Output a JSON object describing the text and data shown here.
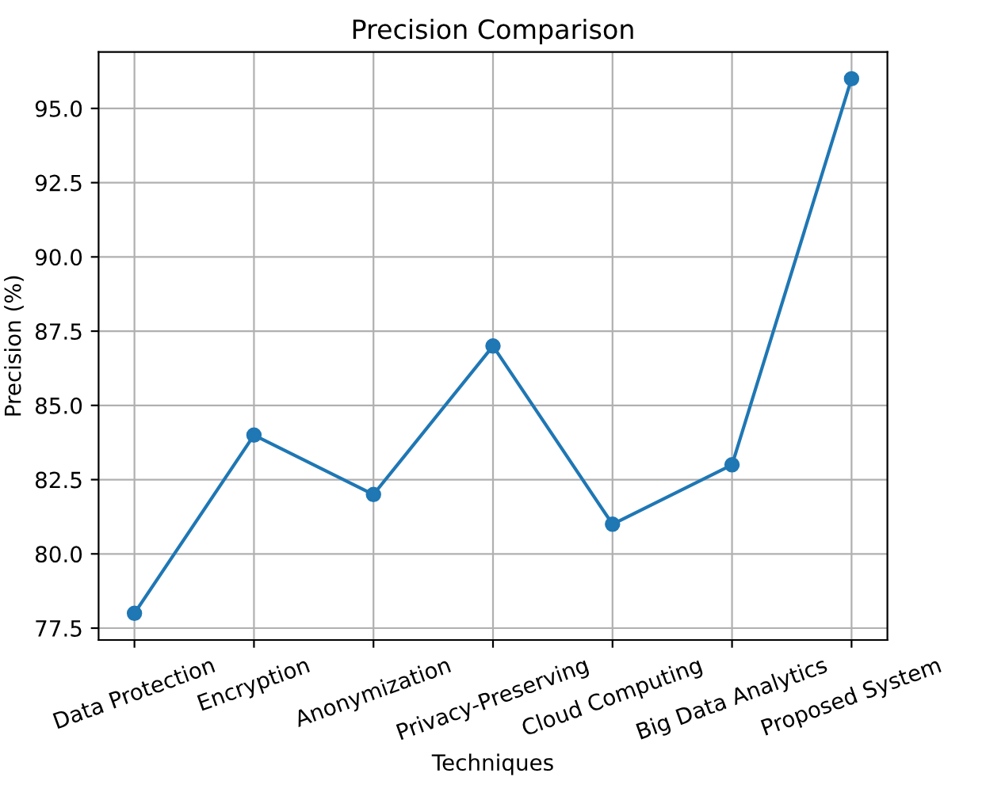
{
  "chart_data": {
    "type": "line",
    "title": "Precision Comparison",
    "xlabel": "Techniques",
    "ylabel": "Precision (%)",
    "categories": [
      "Data Protection",
      "Encryption",
      "Anonymization",
      "Privacy-Preserving",
      "Cloud Computing",
      "Big Data Analytics",
      "Proposed System"
    ],
    "series": [
      {
        "color": "#1f77b4",
        "values": [
          78,
          84,
          82,
          87,
          81,
          83,
          96
        ]
      }
    ],
    "ylim": [
      77.1,
      96.9
    ],
    "yticks": [
      {
        "value": 77.5,
        "label": "77.5"
      },
      {
        "value": 80,
        "label": "80.0"
      },
      {
        "value": 82.5,
        "label": "82.5"
      },
      {
        "value": 85,
        "label": "85.0"
      },
      {
        "value": 87.5,
        "label": "87.5"
      },
      {
        "value": 90,
        "label": "90.0"
      },
      {
        "value": 92.5,
        "label": "92.5"
      },
      {
        "value": 95,
        "label": "95.0"
      }
    ],
    "grid": true,
    "marker": "circle",
    "line_style": "solid"
  }
}
